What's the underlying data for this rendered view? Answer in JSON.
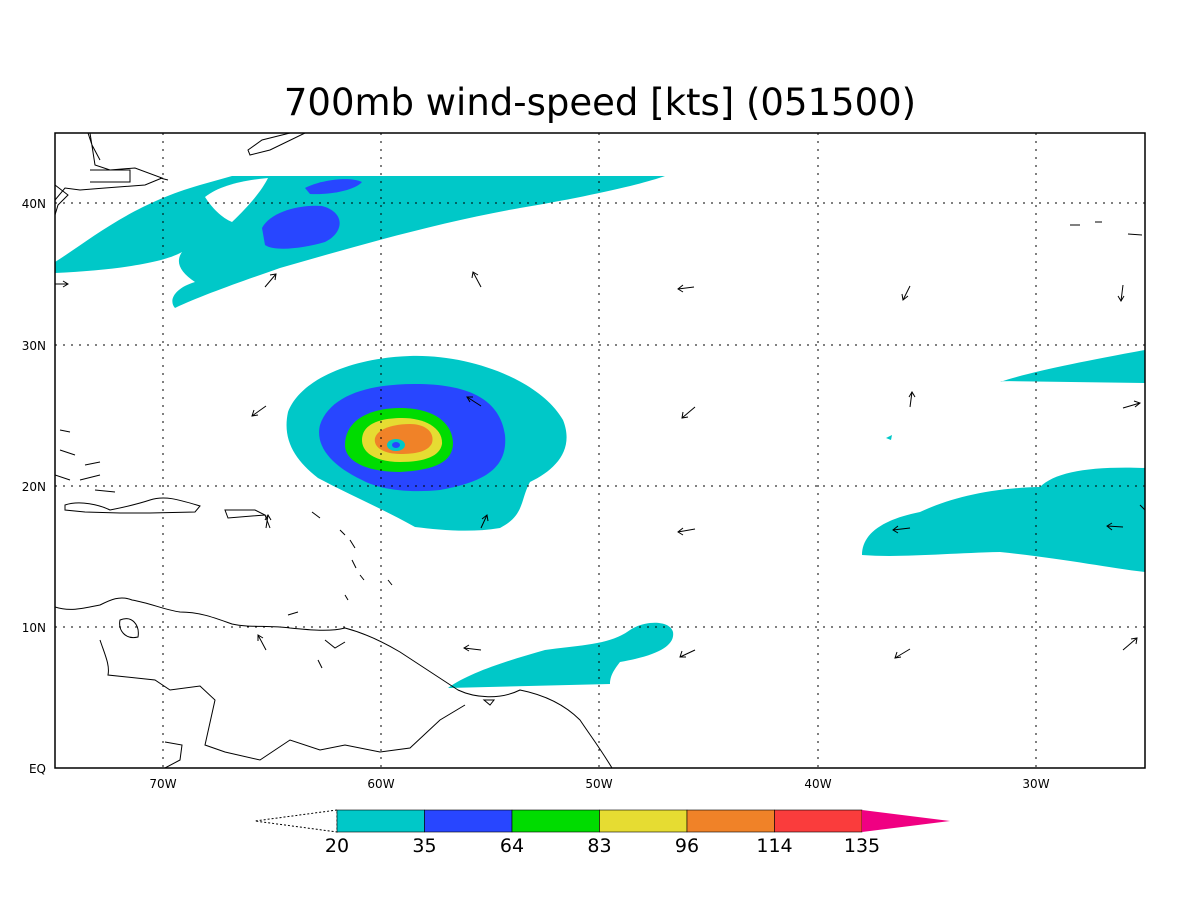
{
  "title": "700mb wind-speed [kts] (051500)",
  "x_ticks": [
    "70W",
    "60W",
    "50W",
    "40W",
    "30W"
  ],
  "y_ticks": [
    "EQ",
    "10N",
    "20N",
    "30N",
    "40N"
  ],
  "colorbar": {
    "labels": [
      "20",
      "35",
      "64",
      "83",
      "96",
      "114",
      "135"
    ],
    "colors": [
      "#00c8c8",
      "#2846ff",
      "#00dc00",
      "#e6dc32",
      "#f08228",
      "#fa3c3c",
      "#f00082"
    ]
  },
  "map": {
    "lon_range": [
      -75,
      -25
    ],
    "lat_range": [
      0,
      45
    ],
    "features": [
      {
        "label": "hurricane-wind-core",
        "center": "22.9N 59.5W"
      }
    ]
  }
}
